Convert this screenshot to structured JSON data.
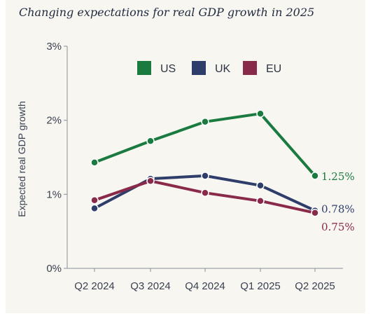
{
  "chart_data": {
    "type": "line",
    "title": "Changing expectations for real GDP growth in 2025",
    "ylabel": "Expected real GDP growth",
    "xlabel": "",
    "categories": [
      "Q2 2024",
      "Q3 2024",
      "Q4 2024",
      "Q1 2025",
      "Q2 2025"
    ],
    "ylim": [
      0,
      3
    ],
    "yticks": [
      0,
      1,
      2,
      3
    ],
    "ytick_labels": [
      "0%",
      "1%",
      "2%",
      "3%"
    ],
    "legend_position": "top",
    "grid": false,
    "series": [
      {
        "name": "US",
        "color": "#1a7a3f",
        "values": [
          1.43,
          1.72,
          1.98,
          2.09,
          1.25
        ],
        "end_label": "1.25%"
      },
      {
        "name": "UK",
        "color": "#2f3d6b",
        "values": [
          0.81,
          1.21,
          1.25,
          1.12,
          0.78
        ],
        "end_label": "0.78%"
      },
      {
        "name": "EU",
        "color": "#8a2a4a",
        "values": [
          0.92,
          1.18,
          1.02,
          0.91,
          0.75
        ],
        "end_label": "0.75%"
      }
    ]
  }
}
